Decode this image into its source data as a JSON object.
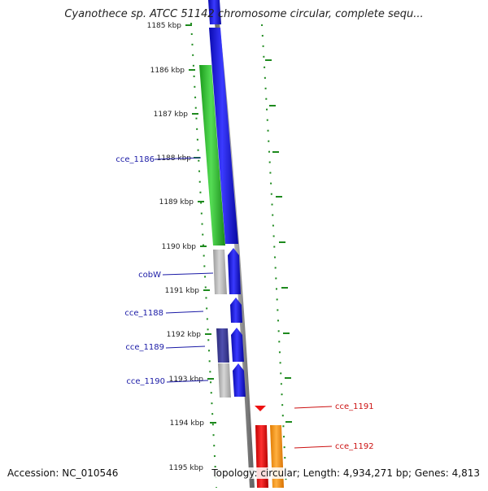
{
  "title": "Cyanothece sp. ATCC 51142 chromosome circular, complete sequ...",
  "accession": "Accession: NC_010546",
  "summary": "Topology: circular; Length: 4,934,271 bp; Genes: 4,813",
  "ruler_ticks": [
    "1185 kbp",
    "1186 kbp",
    "1187 kbp",
    "1188 kbp",
    "1189 kbp",
    "1190 kbp",
    "1191 kbp",
    "1192 kbp",
    "1193 kbp",
    "1194 kbp",
    "1195 kbp"
  ],
  "gene_labels": [
    "cce_1186",
    "cobW",
    "cce_1188",
    "cce_1189",
    "cce_1190",
    "cce_1191",
    "cce_1192"
  ],
  "colors": {
    "backbone": "#808080",
    "cds": "#1010e0",
    "gene_green": "#33c433",
    "gene_gray": "#b8b8b8",
    "gene_navy": "#3a3a96",
    "cds_red": "#ee1111",
    "gene_orange": "#ff9922",
    "ruler": "#1e8a1e",
    "label_blue": "#1a1aa6",
    "label_red": "#cc1111"
  }
}
